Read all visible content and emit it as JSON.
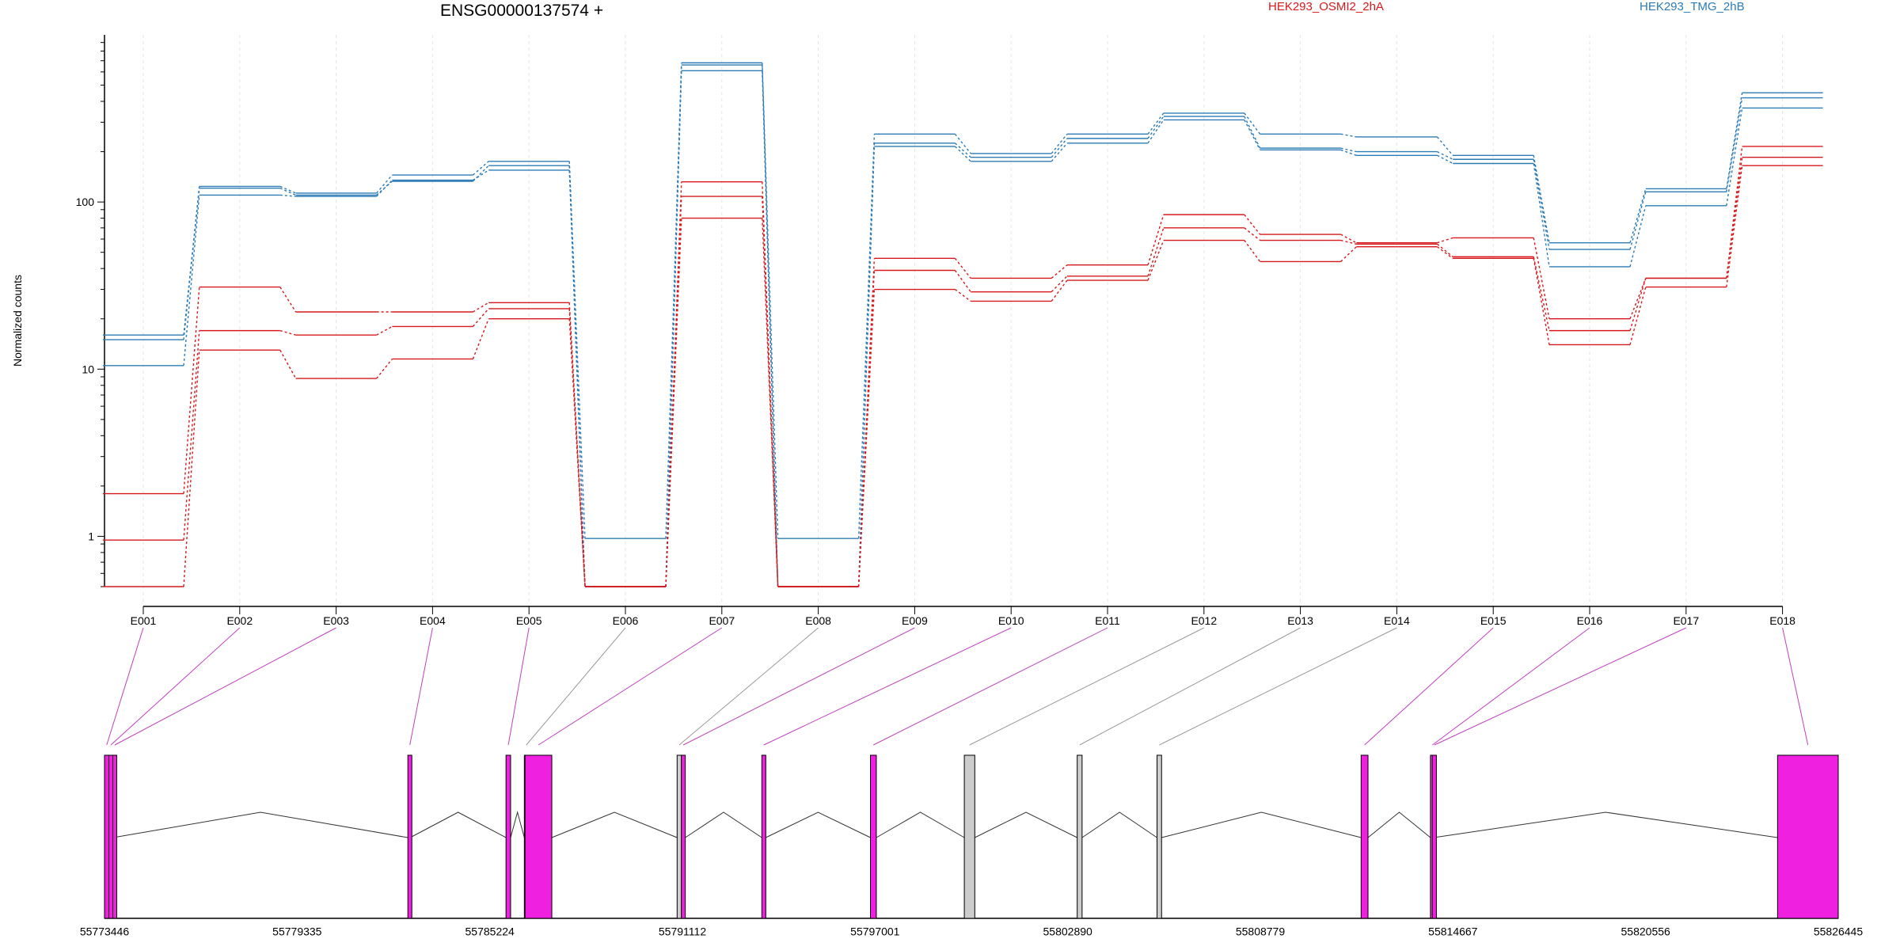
{
  "chart_data": {
    "type": "line",
    "title": "ENSG00000137574 +",
    "ylabel": "Normalized counts",
    "yscale": "log",
    "ylim": [
      0.5,
      1000
    ],
    "yticks": [
      {
        "value": 1,
        "label": "1"
      },
      {
        "value": 10,
        "label": "10"
      },
      {
        "value": 100,
        "label": "100"
      }
    ],
    "colors": {
      "HEK293_OSMI2_2hA": "#d7191c",
      "HEK293_TMG_2hB": "#2c7bb6",
      "connector_magenta": "#c040c0",
      "connector_gray": "#999999",
      "exon_magenta": "#f020e0",
      "exon_gray": "#cccccc"
    },
    "legend": [
      "HEK293_OSMI2_2hA",
      "HEK293_TMG_2hB"
    ],
    "legend_placement": "top",
    "categories": [
      "E001",
      "E002",
      "E003",
      "E004",
      "E005",
      "E006",
      "E007",
      "E008",
      "E009",
      "E010",
      "E011",
      "E012",
      "E013",
      "E014",
      "E015",
      "E016",
      "E017",
      "E018"
    ],
    "series": [
      {
        "name": "HEK293_TMG_2hB",
        "group": "HEK293_TMG_2hB",
        "values": [
          16,
          124,
          113,
          145,
          175,
          0.97,
          680,
          0.97,
          255,
          195,
          255,
          340,
          255,
          245,
          190,
          57,
          120,
          450
        ]
      },
      {
        "name": "HEK293_TMG_2hB",
        "group": "HEK293_TMG_2hB",
        "values": [
          15,
          121,
          110,
          133,
          165,
          0.5,
          660,
          0.5,
          225,
          185,
          240,
          325,
          210,
          200,
          180,
          52,
          115,
          420
        ]
      },
      {
        "name": "HEK293_TMG_2hB",
        "group": "HEK293_TMG_2hB",
        "values": [
          10.5,
          110,
          108,
          135,
          155,
          0.5,
          610,
          0.5,
          215,
          175,
          225,
          310,
          205,
          190,
          170,
          41,
          95,
          365
        ]
      },
      {
        "name": "HEK293_OSMI2_2hA",
        "group": "HEK293_OSMI2_2hA",
        "values": [
          1.8,
          31,
          22,
          22,
          25,
          0.5,
          132,
          0.5,
          46,
          35,
          42,
          84,
          64,
          57,
          61,
          20,
          35,
          215
        ]
      },
      {
        "name": "HEK293_OSMI2_2hA",
        "group": "HEK293_OSMI2_2hA",
        "values": [
          0.95,
          17,
          16,
          18,
          23,
          0.5,
          108,
          0.5,
          39,
          29,
          36,
          70,
          59,
          56,
          47,
          17,
          35,
          185
        ]
      },
      {
        "name": "HEK293_OSMI2_2hA",
        "group": "HEK293_OSMI2_2hA",
        "values": [
          0.5,
          13,
          8.8,
          11.5,
          20,
          0.5,
          80,
          0.5,
          30,
          25.5,
          34,
          59,
          44,
          54,
          46,
          14,
          31,
          165
        ]
      }
    ],
    "gene_model": {
      "coordinate_labels": [
        "55773446",
        "55779335",
        "55785224",
        "55791112",
        "55797001",
        "55802890",
        "55808779",
        "55814667",
        "55820556",
        "55826445"
      ],
      "coordinate_range": [
        55773446,
        55826445
      ],
      "exons": [
        {
          "label": "E001",
          "start": 55773446,
          "end": 55773580,
          "tested": true
        },
        {
          "label": "E002",
          "start": 55773580,
          "end": 55773700,
          "tested": true
        },
        {
          "label": "E003",
          "start": 55773700,
          "end": 55773710,
          "tested": true
        },
        {
          "label": "E004",
          "start": 55782720,
          "end": 55782790,
          "tested": true
        },
        {
          "label": "E005",
          "start": 55785720,
          "end": 55785860,
          "tested": true
        },
        {
          "label": "E006",
          "start": 55786280,
          "end": 55786290,
          "tested": false
        },
        {
          "label": "E007",
          "start": 55786300,
          "end": 55787120,
          "tested": true
        },
        {
          "label": "E008",
          "start": 55790950,
          "end": 55791080,
          "tested": false
        },
        {
          "label": "E009",
          "start": 55791080,
          "end": 55791200,
          "tested": true
        },
        {
          "label": "E010",
          "start": 55793540,
          "end": 55793660,
          "tested": true
        },
        {
          "label": "E011",
          "start": 55796860,
          "end": 55797040,
          "tested": true
        },
        {
          "label": "E012",
          "start": 55799730,
          "end": 55800050,
          "tested": false
        },
        {
          "label": "E013",
          "start": 55803180,
          "end": 55803330,
          "tested": false
        },
        {
          "label": "E014",
          "start": 55805620,
          "end": 55805760,
          "tested": false
        },
        {
          "label": "E015",
          "start": 55811860,
          "end": 55812070,
          "tested": true
        },
        {
          "label": "E016",
          "start": 55813980,
          "end": 55814040,
          "tested": true
        },
        {
          "label": "E017",
          "start": 55814040,
          "end": 55814080,
          "tested": true
        },
        {
          "label": "E018",
          "start": 55824590,
          "end": 55826445,
          "tested": true
        }
      ]
    }
  }
}
